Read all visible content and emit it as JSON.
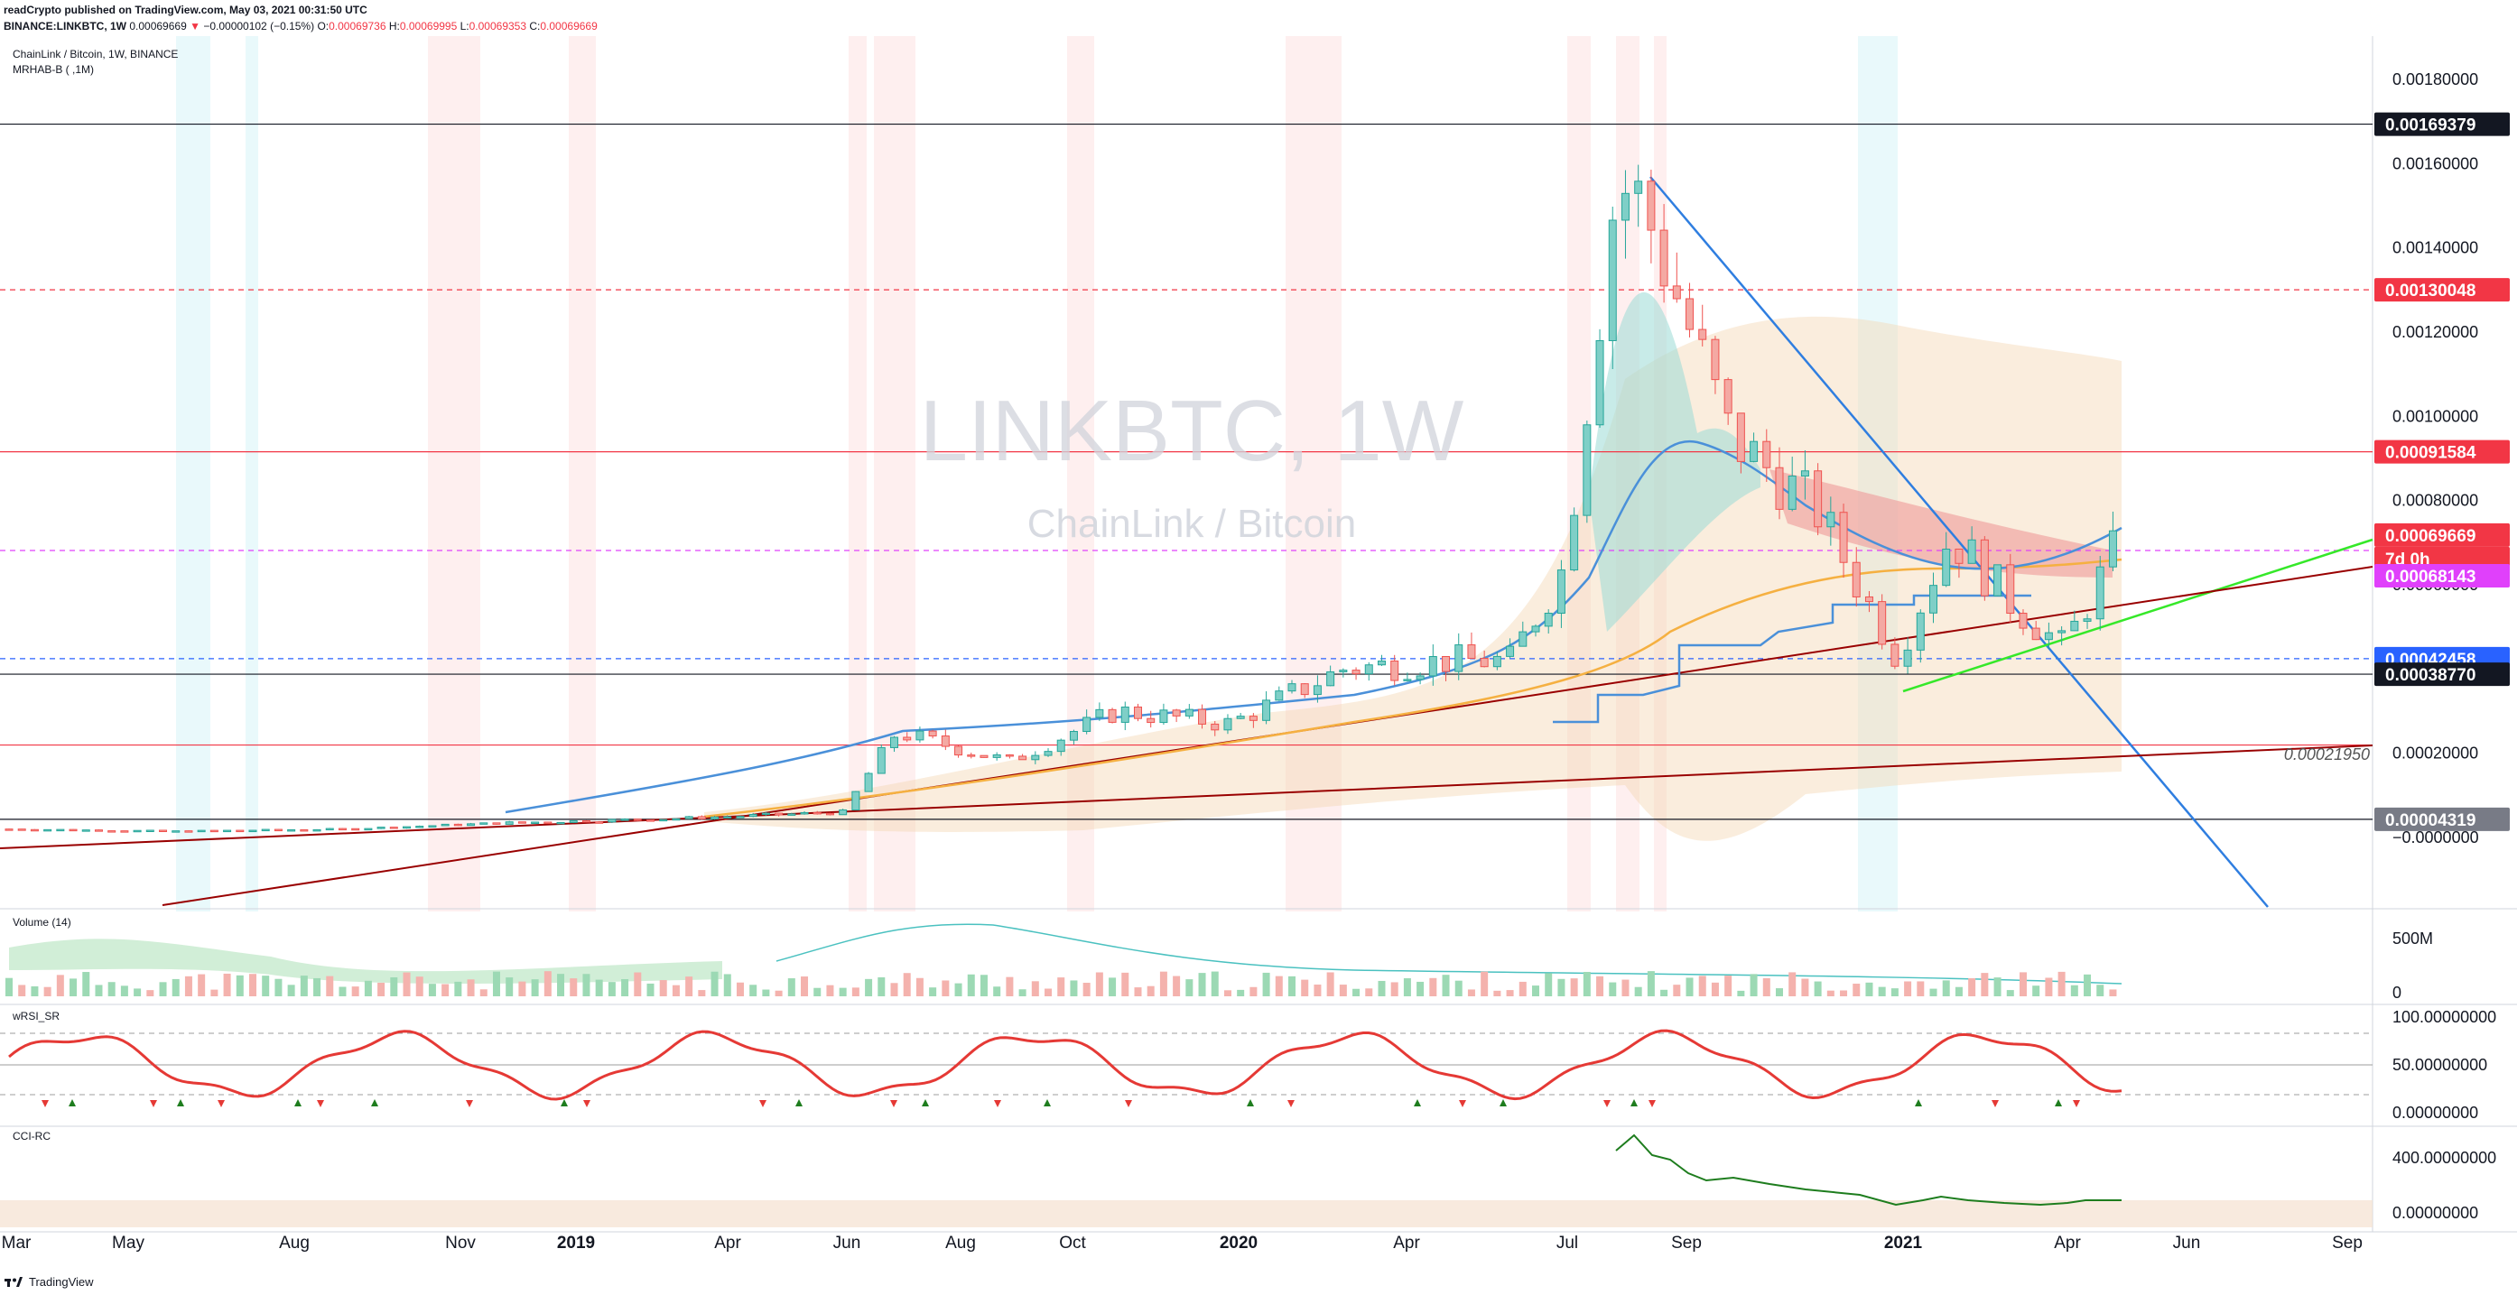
{
  "header": {
    "line1": "readCrypto published on TradingView.com, May 03, 2021 00:31:50 UTC",
    "symbol": "BINANCE:LINKBTC, 1W",
    "last": "0.00069669",
    "change_arrow": "▼",
    "change": "−0.00000102 (−0.15%)",
    "o_label": "O:",
    "o_val": "0.00069736",
    "h_label": "H:",
    "h_val": "0.00069995",
    "l_label": "L:",
    "l_val": "0.00069353",
    "c_label": "C:",
    "c_val": "0.00069669"
  },
  "main_pane": {
    "title": "ChainLink / Bitcoin, 1W, BINANCE",
    "indicator": "MRHAB-B ( ,1M)",
    "watermark_symbol": "LINKBTC, 1W",
    "watermark_name": "ChainLink / Bitcoin"
  },
  "panes": {
    "volume": "Volume (14)",
    "wrsi": "wRSI_SR",
    "cci": "CCI-RC"
  },
  "footer": {
    "brand": "TradingView"
  },
  "colors": {
    "up_candle": "#26a69a",
    "down_candle": "#ef5350",
    "trendline_blue": "#2f7ee0",
    "trendline_green": "#35e829",
    "trendline_darkred": "#990000",
    "level_red": "#f23645",
    "level_magenta": "#e040fb",
    "level_blue": "#2962ff",
    "rsi_cyan": "#40e0e8",
    "cci_green": "#1e7d1e"
  },
  "chart_data": [
    {
      "type": "line",
      "title": "ChainLink / Bitcoin, 1W, BINANCE",
      "y_axis": {
        "ylim": [
          -0.0001,
          0.0019
        ],
        "ticks": [
          "0.00180000",
          "0.00160000",
          "0.00140000",
          "0.00120000",
          "0.00100000",
          "0.00080000",
          "0.00060000",
          "0.00040000",
          "0.00020000",
          "−0.0000000"
        ]
      },
      "x_axis": {
        "ticks": [
          "Mar",
          "May",
          "Aug",
          "Nov",
          "2019",
          "Apr",
          "Jun",
          "Aug",
          "Oct",
          "2020",
          "Apr",
          "Jul",
          "Sep",
          "2021",
          "Apr",
          "Jun",
          "Sep"
        ]
      },
      "price_labels": [
        {
          "value": "0.00169379",
          "style": "dark"
        },
        {
          "value": "0.00130048",
          "style": "red"
        },
        {
          "value": "0.00091584",
          "style": "red"
        },
        {
          "value": "0.00069669",
          "style": "red"
        },
        {
          "value": "7d 0h",
          "style": "red"
        },
        {
          "value": "0.00068143",
          "style": "magenta"
        },
        {
          "value": "0.00042458",
          "style": "blue"
        },
        {
          "value": "0.00038770",
          "style": "dark"
        },
        {
          "value": "0.00004319",
          "style": "grey"
        }
      ],
      "annotations": [
        "0.00021950"
      ],
      "horizontal_levels": [
        {
          "value": 0.00169379,
          "style": "solid-dark"
        },
        {
          "value": 0.00130048,
          "style": "dashed-red"
        },
        {
          "value": 0.00091584,
          "style": "solid-red"
        },
        {
          "value": 0.00068143,
          "style": "dashed-magenta"
        },
        {
          "value": 0.00042458,
          "style": "dashed-blue"
        },
        {
          "value": 0.0003877,
          "style": "solid-dark"
        },
        {
          "value": 0.0002195,
          "style": "solid-red"
        },
        {
          "value": 4.319e-05,
          "style": "solid-dark"
        }
      ],
      "series": [
        {
          "values": [
            [
              2018.17,
              2e-05
            ],
            [
              2018.42,
              1.5e-05
            ],
            [
              2018.67,
              2e-05
            ],
            [
              2018.92,
              3.5e-05
            ],
            [
              2019.17,
              4.5e-05
            ],
            [
              2019.42,
              6e-05
            ],
            [
              2019.5,
              0.00025
            ],
            [
              2019.67,
              0.00018
            ],
            [
              2019.83,
              0.0003
            ],
            [
              2020.0,
              0.00027
            ],
            [
              2020.17,
              0.0004
            ],
            [
              2020.33,
              0.00042
            ],
            [
              2020.42,
              0.00042
            ],
            [
              2020.5,
              0.00064
            ],
            [
              2020.58,
              0.00156
            ],
            [
              2020.62,
              0.0015
            ],
            [
              2020.75,
              0.00095
            ],
            [
              2020.88,
              0.00078
            ],
            [
              2021.0,
              0.00043
            ],
            [
              2021.08,
              0.00072
            ],
            [
              2021.17,
              0.00056
            ],
            [
              2021.25,
              0.00045
            ],
            [
              2021.33,
              0.00069
            ]
          ]
        }
      ]
    },
    {
      "type": "bar",
      "title": "Volume (14)",
      "y_axis": {
        "ticks": [
          "500M",
          "0"
        ]
      }
    },
    {
      "type": "line",
      "title": "wRSI_SR",
      "y_axis": {
        "ticks": [
          "100.00000000",
          "50.00000000",
          "0.00000000"
        ]
      }
    },
    {
      "type": "line",
      "title": "CCI-RC",
      "y_axis": {
        "ticks": [
          "400.00000000",
          "0.00000000"
        ]
      }
    }
  ]
}
